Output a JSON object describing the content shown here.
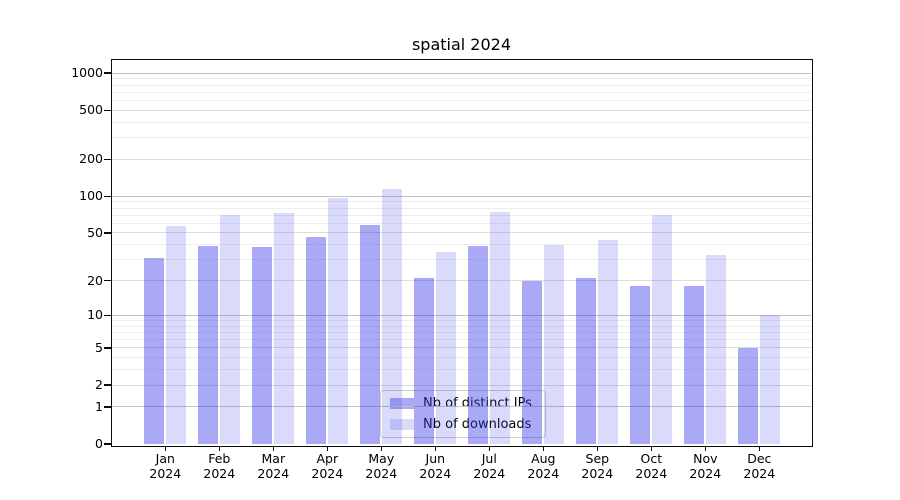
{
  "title": "spatial 2024",
  "chart_data": {
    "type": "bar",
    "title": "spatial 2024",
    "categories": [
      "Jan",
      "Feb",
      "Mar",
      "Apr",
      "May",
      "Jun",
      "Jul",
      "Aug",
      "Sep",
      "Oct",
      "Nov",
      "Dec"
    ],
    "x_tick_label_line2": "2024",
    "series": [
      {
        "name": "Nb of distinct IPs",
        "color": "rgba(60,60,235,0.44)",
        "values": [
          31,
          39,
          38,
          46,
          58,
          21,
          39,
          20,
          21,
          18,
          18,
          5
        ]
      },
      {
        "name": "Nb of downloads",
        "color": "rgba(60,60,235,0.19)",
        "values": [
          57,
          71,
          73,
          97,
          115,
          35,
          74,
          40,
          44,
          70,
          33,
          10
        ]
      }
    ],
    "yscale": "log10(1+x)",
    "ylim": [
      0,
      1280
    ],
    "yticks": [
      1000,
      500,
      200,
      100,
      50,
      20,
      10,
      5,
      2,
      1,
      0
    ],
    "major_grid_values": [
      1000,
      100,
      10,
      1
    ],
    "minor_grid_values": [
      3,
      4,
      6,
      7,
      8,
      9,
      30,
      40,
      60,
      70,
      80,
      90,
      300,
      400,
      600,
      700,
      800,
      900
    ],
    "grid": true,
    "legend_position": "lower center",
    "grid_color_major": "#c3c3c3",
    "grid_color_tick": "#dcdcdc",
    "grid_color_minor": "#ededed"
  }
}
